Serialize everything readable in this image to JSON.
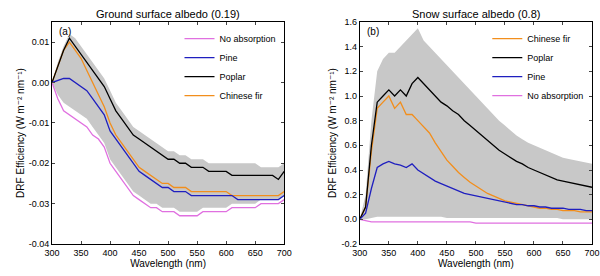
{
  "chart_data": [
    {
      "type": "line",
      "title": "Ground surface albedo (0.19)",
      "panel_label": "(a)",
      "x_label": "Wavelength (nm)",
      "y_label": "DRF Efficiency (W m⁻² nm⁻¹)",
      "xlim": [
        300,
        700
      ],
      "xticks": [
        300,
        350,
        400,
        450,
        500,
        550,
        600,
        650,
        700
      ],
      "ylim": [
        -0.04,
        0.015
      ],
      "yticks": [
        -0.04,
        -0.03,
        -0.02,
        -0.01,
        {
          "value": 0,
          "label": "0.00"
        },
        0.01
      ],
      "legend": "top right",
      "x": [
        300,
        310,
        320,
        330,
        340,
        350,
        360,
        370,
        380,
        390,
        400,
        410,
        420,
        430,
        440,
        450,
        460,
        470,
        480,
        490,
        500,
        510,
        520,
        530,
        540,
        550,
        560,
        570,
        580,
        590,
        600,
        610,
        620,
        630,
        640,
        650,
        660,
        670,
        680,
        690,
        700
      ],
      "band": {
        "color": "#c8c8c8",
        "upper": [
          0,
          0.005,
          0.009,
          0.012,
          0.011,
          0.009,
          0.007,
          0.005,
          0.003,
          0.001,
          -0.002,
          -0.005,
          -0.007,
          -0.009,
          -0.011,
          -0.012,
          -0.013,
          -0.014,
          -0.015,
          -0.016,
          -0.017,
          -0.017,
          -0.018,
          -0.018,
          -0.019,
          -0.019,
          -0.019,
          -0.02,
          -0.02,
          -0.02,
          -0.02,
          -0.02,
          -0.02,
          -0.02,
          -0.02,
          -0.02,
          -0.021,
          -0.021,
          -0.021,
          -0.021,
          -0.02
        ],
        "lower": [
          0,
          -0.003,
          -0.005,
          -0.006,
          -0.007,
          -0.008,
          -0.009,
          -0.011,
          -0.013,
          -0.015,
          -0.019,
          -0.021,
          -0.023,
          -0.025,
          -0.027,
          -0.028,
          -0.029,
          -0.03,
          -0.03,
          -0.031,
          -0.031,
          -0.031,
          -0.032,
          -0.032,
          -0.032,
          -0.032,
          -0.031,
          -0.031,
          -0.031,
          -0.031,
          -0.031,
          -0.03,
          -0.03,
          -0.03,
          -0.03,
          -0.03,
          -0.029,
          -0.029,
          -0.029,
          -0.029,
          -0.028
        ]
      },
      "series": [
        {
          "name": "Chinese fir",
          "color": "#f28e1c",
          "values": [
            0,
            0.004,
            0.008,
            0.01,
            0.008,
            0.006,
            0.003,
            0,
            -0.003,
            -0.006,
            -0.01,
            -0.013,
            -0.015,
            -0.017,
            -0.019,
            -0.021,
            -0.022,
            -0.023,
            -0.024,
            -0.025,
            -0.025,
            -0.026,
            -0.026,
            -0.026,
            -0.027,
            -0.027,
            -0.027,
            -0.027,
            -0.027,
            -0.027,
            -0.027,
            -0.028,
            -0.028,
            -0.028,
            -0.028,
            -0.028,
            -0.028,
            -0.028,
            -0.028,
            -0.028,
            -0.027
          ]
        },
        {
          "name": "Poplar",
          "color": "#000000",
          "values": [
            0,
            0.004,
            0.008,
            0.011,
            0.009,
            0.007,
            0.005,
            0.003,
            0.001,
            -0.001,
            -0.004,
            -0.007,
            -0.009,
            -0.011,
            -0.013,
            -0.014,
            -0.015,
            -0.016,
            -0.017,
            -0.018,
            -0.019,
            -0.019,
            -0.02,
            -0.02,
            -0.021,
            -0.021,
            -0.021,
            -0.022,
            -0.022,
            -0.022,
            -0.022,
            -0.023,
            -0.023,
            -0.023,
            -0.023,
            -0.023,
            -0.023,
            -0.023,
            -0.023,
            -0.024,
            -0.022
          ]
        },
        {
          "name": "Pine",
          "color": "#1f1fbf",
          "values": [
            0,
            0.0005,
            0.001,
            0.001,
            0,
            -0.001,
            -0.002,
            -0.004,
            -0.006,
            -0.008,
            -0.012,
            -0.014,
            -0.016,
            -0.018,
            -0.02,
            -0.022,
            -0.023,
            -0.024,
            -0.025,
            -0.026,
            -0.026,
            -0.027,
            -0.027,
            -0.027,
            -0.028,
            -0.028,
            -0.028,
            -0.028,
            -0.028,
            -0.028,
            -0.028,
            -0.028,
            -0.029,
            -0.029,
            -0.029,
            -0.029,
            -0.029,
            -0.029,
            -0.029,
            -0.029,
            -0.028
          ]
        },
        {
          "name": "No absorption",
          "color": "#e070e0",
          "values": [
            0,
            -0.004,
            -0.007,
            -0.008,
            -0.009,
            -0.01,
            -0.011,
            -0.013,
            -0.014,
            -0.016,
            -0.02,
            -0.022,
            -0.024,
            -0.026,
            -0.028,
            -0.029,
            -0.03,
            -0.031,
            -0.031,
            -0.032,
            -0.032,
            -0.032,
            -0.033,
            -0.033,
            -0.033,
            -0.033,
            -0.032,
            -0.032,
            -0.032,
            -0.032,
            -0.032,
            -0.031,
            -0.031,
            -0.031,
            -0.031,
            -0.031,
            -0.03,
            -0.03,
            -0.03,
            -0.03,
            -0.029
          ]
        }
      ]
    },
    {
      "type": "line",
      "title": "Snow surface albedo (0.8)",
      "panel_label": "(b)",
      "x_label": "Wavelength (nm)",
      "y_label": "DRF Efficiency (W m⁻² nm⁻¹)",
      "xlim": [
        300,
        700
      ],
      "xticks": [
        300,
        350,
        400,
        450,
        500,
        550,
        600,
        650,
        700
      ],
      "ylim": [
        -0.2,
        1.6
      ],
      "yticks": [
        -0.2,
        {
          "value": 0,
          "label": "0.0"
        },
        0.2,
        0.4,
        0.6,
        0.8,
        {
          "value": 1,
          "label": "1.0"
        },
        1.2,
        1.4,
        1.6
      ],
      "legend": "top right",
      "x": [
        300,
        310,
        320,
        330,
        340,
        350,
        360,
        370,
        380,
        390,
        400,
        410,
        420,
        430,
        440,
        450,
        460,
        470,
        480,
        490,
        500,
        510,
        520,
        530,
        540,
        550,
        560,
        570,
        580,
        590,
        600,
        610,
        620,
        630,
        640,
        650,
        660,
        670,
        680,
        690,
        700
      ],
      "band": {
        "color": "#c8c8c8",
        "upper": [
          0,
          0.2,
          0.8,
          1.2,
          1.3,
          1.35,
          1.35,
          1.4,
          1.45,
          1.5,
          1.55,
          1.45,
          1.4,
          1.35,
          1.3,
          1.25,
          1.2,
          1.15,
          1.1,
          1.05,
          1,
          0.95,
          0.9,
          0.85,
          0.8,
          0.76,
          0.72,
          0.68,
          0.65,
          0.62,
          0.6,
          0.58,
          0.56,
          0.54,
          0.52,
          0.5,
          0.49,
          0.48,
          0.47,
          0.46,
          0.45
        ],
        "lower": [
          0,
          0,
          0.01,
          0.02,
          0.02,
          0.02,
          0.02,
          0.02,
          0.02,
          0.02,
          0.02,
          0.02,
          0.02,
          0.02,
          0.02,
          0.01,
          0.01,
          0.01,
          0.01,
          0.01,
          0.01,
          0.01,
          0.01,
          0.01,
          0.01,
          0.01,
          0.01,
          0.01,
          0.01,
          0.01,
          0.01,
          0.01,
          0.01,
          0.01,
          0.01,
          0,
          0,
          0,
          0,
          0,
          0
        ]
      },
      "series": [
        {
          "name": "Chinese fir",
          "color": "#f28e1c",
          "values": [
            0,
            0.1,
            0.55,
            0.9,
            0.95,
            1,
            0.9,
            0.95,
            0.85,
            0.85,
            0.8,
            0.75,
            0.7,
            0.62,
            0.55,
            0.48,
            0.43,
            0.38,
            0.34,
            0.3,
            0.27,
            0.24,
            0.21,
            0.19,
            0.17,
            0.15,
            0.14,
            0.13,
            0.12,
            0.11,
            0.1,
            0.09,
            0.09,
            0.08,
            0.08,
            0.07,
            0.07,
            0.07,
            0.06,
            0.06,
            0.06
          ]
        },
        {
          "name": "Poplar",
          "color": "#000000",
          "values": [
            0,
            0.1,
            0.6,
            0.95,
            1,
            1.05,
            1,
            1.05,
            1,
            1.1,
            1.15,
            1.1,
            1.05,
            1,
            0.95,
            0.92,
            0.88,
            0.85,
            0.8,
            0.76,
            0.72,
            0.68,
            0.64,
            0.6,
            0.56,
            0.53,
            0.5,
            0.47,
            0.45,
            0.42,
            0.4,
            0.38,
            0.36,
            0.34,
            0.32,
            0.31,
            0.3,
            0.29,
            0.28,
            0.27,
            0.26
          ]
        },
        {
          "name": "Pine",
          "color": "#1f1fbf",
          "values": [
            0,
            0.05,
            0.25,
            0.42,
            0.45,
            0.47,
            0.45,
            0.44,
            0.42,
            0.45,
            0.4,
            0.37,
            0.34,
            0.31,
            0.29,
            0.27,
            0.25,
            0.23,
            0.21,
            0.2,
            0.19,
            0.18,
            0.17,
            0.16,
            0.15,
            0.14,
            0.13,
            0.12,
            0.12,
            0.11,
            0.11,
            0.1,
            0.1,
            0.09,
            0.09,
            0.09,
            0.08,
            0.08,
            0.08,
            0.07,
            0.07
          ]
        },
        {
          "name": "No absorption",
          "color": "#e070e0",
          "values": [
            0,
            -0.01,
            -0.02,
            -0.02,
            -0.02,
            -0.02,
            -0.02,
            -0.02,
            -0.02,
            -0.02,
            -0.02,
            -0.02,
            -0.02,
            -0.02,
            -0.02,
            -0.02,
            -0.02,
            -0.02,
            -0.02,
            -0.02,
            -0.03,
            -0.03,
            -0.03,
            -0.03,
            -0.03,
            -0.03,
            -0.03,
            -0.03,
            -0.03,
            -0.03,
            -0.03,
            -0.03,
            -0.03,
            -0.03,
            -0.03,
            -0.03,
            -0.03,
            -0.03,
            -0.03,
            -0.03,
            -0.03
          ]
        }
      ]
    }
  ]
}
